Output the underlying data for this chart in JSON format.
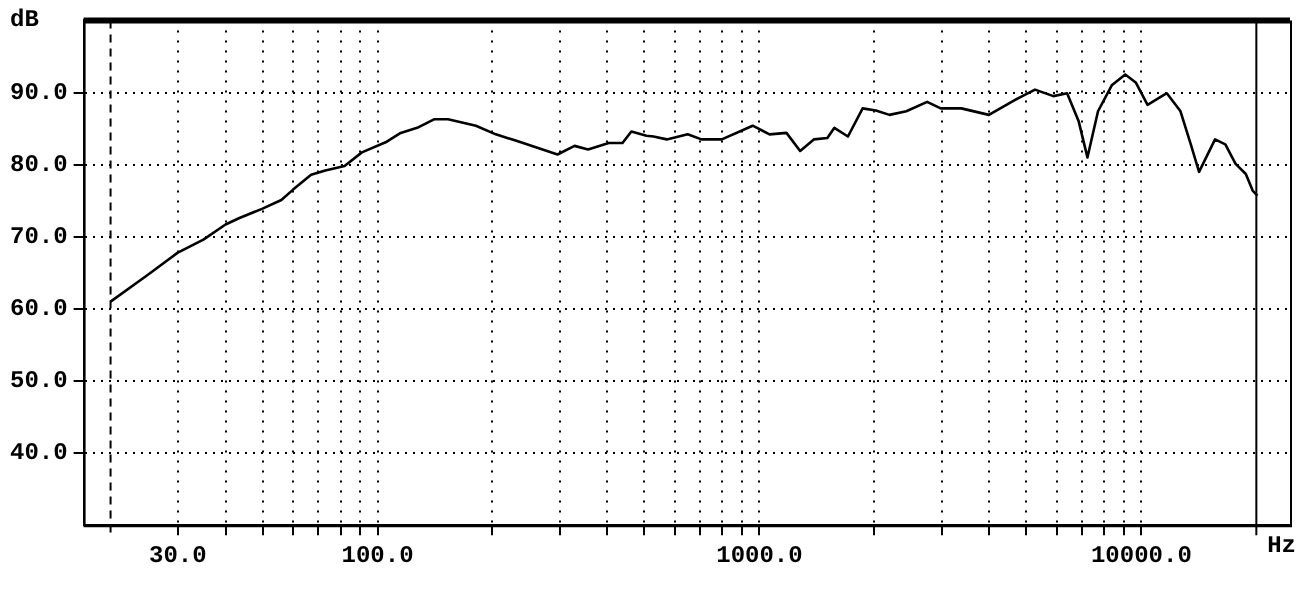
{
  "chart_data": {
    "type": "line",
    "xlabel": "Hz",
    "ylabel": "dB",
    "log": "x",
    "grid": true,
    "legend": false,
    "marker": "none",
    "line_style": "solid",
    "xlim": [
      17,
      24500
    ],
    "ylim": [
      30,
      100
    ],
    "xticks": [
      {
        "value": 30,
        "label": "30.0"
      },
      {
        "value": 40,
        "label": null
      },
      {
        "value": 50,
        "label": null
      },
      {
        "value": 60,
        "label": null
      },
      {
        "value": 70,
        "label": null
      },
      {
        "value": 80,
        "label": null
      },
      {
        "value": 90,
        "label": null
      },
      {
        "value": 100,
        "label": "100.0"
      },
      {
        "value": 200,
        "label": null
      },
      {
        "value": 300,
        "label": null
      },
      {
        "value": 400,
        "label": null
      },
      {
        "value": 500,
        "label": null
      },
      {
        "value": 600,
        "label": null
      },
      {
        "value": 700,
        "label": null
      },
      {
        "value": 800,
        "label": null
      },
      {
        "value": 900,
        "label": null
      },
      {
        "value": 1000,
        "label": "1000.0"
      },
      {
        "value": 2000,
        "label": null
      },
      {
        "value": 3000,
        "label": null
      },
      {
        "value": 4000,
        "label": null
      },
      {
        "value": 5000,
        "label": null
      },
      {
        "value": 6000,
        "label": null
      },
      {
        "value": 7000,
        "label": null
      },
      {
        "value": 8000,
        "label": null
      },
      {
        "value": 9000,
        "label": null
      },
      {
        "value": 10000,
        "label": "10000.0"
      }
    ],
    "yticks": [
      {
        "value": 40,
        "label": "40.0"
      },
      {
        "value": 50,
        "label": "50.0"
      },
      {
        "value": 60,
        "label": "60.0"
      },
      {
        "value": 70,
        "label": "70.0"
      },
      {
        "value": 80,
        "label": "80.0"
      },
      {
        "value": 90,
        "label": "90.0"
      }
    ],
    "ref_lines": [
      {
        "axis": "x",
        "value": 20,
        "line_style": "dashed",
        "color": "#000000"
      },
      {
        "axis": "x",
        "value": 20000,
        "line_style": "solid",
        "color": "#000000"
      }
    ],
    "series": [
      {
        "color": "#000000",
        "x": [
          20,
          25,
          30,
          35,
          40,
          43.5,
          50,
          56,
          60,
          67,
          73,
          82,
          91,
          105,
          115,
          127,
          141,
          153,
          181,
          204,
          231,
          296,
          328,
          356,
          403,
          438,
          462,
          506,
          528,
          572,
          649,
          705,
          797,
          960,
          1063,
          1177,
          1278,
          1388,
          1506,
          1571,
          1705,
          1863,
          2018,
          2190,
          2424,
          2749,
          2982,
          3378,
          3988,
          4794,
          5267,
          5884,
          6390,
          6853,
          7224,
          7700,
          8365,
          9074,
          9666,
          10380,
          11658,
          12660,
          13472,
          14160,
          15591,
          16590,
          17650,
          18771,
          19560,
          20130
        ],
        "values": [
          61.0,
          64.7,
          67.8,
          69.6,
          71.7,
          72.6,
          73.9,
          75.1,
          76.5,
          78.6,
          79.2,
          79.8,
          81.7,
          83.1,
          84.4,
          85.1,
          86.3,
          86.3,
          85.4,
          84.2,
          83.3,
          81.4,
          82.6,
          82.1,
          83.0,
          83.0,
          84.6,
          84.0,
          83.9,
          83.5,
          84.2,
          83.5,
          83.5,
          85.4,
          84.2,
          84.4,
          81.9,
          83.5,
          83.7,
          85.1,
          83.9,
          87.8,
          87.5,
          86.9,
          87.4,
          88.7,
          87.8,
          87.8,
          86.9,
          89.3,
          90.4,
          89.5,
          89.9,
          86.0,
          81.0,
          87.4,
          91.0,
          92.5,
          91.4,
          88.3,
          89.9,
          87.4,
          82.8,
          79.0,
          83.5,
          82.8,
          80.1,
          78.7,
          76.4,
          75.7
        ]
      }
    ]
  }
}
